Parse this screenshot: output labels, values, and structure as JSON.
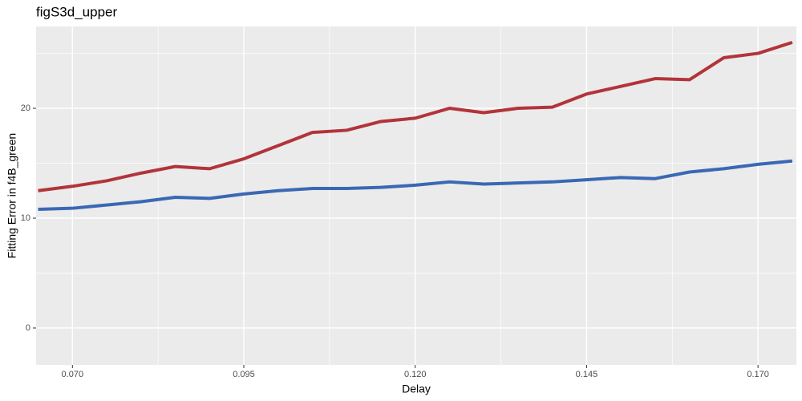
{
  "chart_data": {
    "type": "line",
    "title": "figS3d_upper",
    "x_label": "Delay",
    "y_label": "Fitting Error in f4B_green",
    "x": [
      0.065,
      0.07,
      0.075,
      0.08,
      0.085,
      0.09,
      0.095,
      0.1,
      0.105,
      0.11,
      0.115,
      0.12,
      0.125,
      0.13,
      0.135,
      0.14,
      0.145,
      0.15,
      0.155,
      0.16,
      0.165,
      0.17,
      0.175
    ],
    "series": [
      {
        "color": "#b2343a",
        "values": [
          12.5,
          12.9,
          13.4,
          14.1,
          14.7,
          14.5,
          15.4,
          16.6,
          17.8,
          18.0,
          18.8,
          19.1,
          20.0,
          19.6,
          20.0,
          20.1,
          21.3,
          22.0,
          22.7,
          22.6,
          24.6,
          25.0,
          26.0
        ]
      },
      {
        "color": "#3a68b4",
        "values": [
          10.8,
          10.9,
          11.2,
          11.5,
          11.9,
          11.8,
          12.2,
          12.5,
          12.7,
          12.7,
          12.8,
          13.0,
          13.3,
          13.1,
          13.2,
          13.3,
          13.5,
          13.7,
          13.6,
          14.2,
          14.5,
          14.9,
          15.2
        ]
      }
    ],
    "xlim": [
      0.0647,
      0.1756
    ],
    "ylim": [
      -3.36,
      27.45
    ],
    "xticks": [
      {
        "value": 0.07,
        "label": "0.070"
      },
      {
        "value": 0.095,
        "label": "0.095"
      },
      {
        "value": 0.12,
        "label": "0.120"
      },
      {
        "value": 0.145,
        "label": "0.145"
      },
      {
        "value": 0.17,
        "label": "0.170"
      }
    ],
    "yticks": [
      0,
      10,
      20
    ],
    "x_minor_ticks": [
      0.0825,
      0.1075,
      0.1325,
      0.1575
    ],
    "y_minor_ticks": [
      5,
      15,
      25
    ],
    "grid": true
  }
}
